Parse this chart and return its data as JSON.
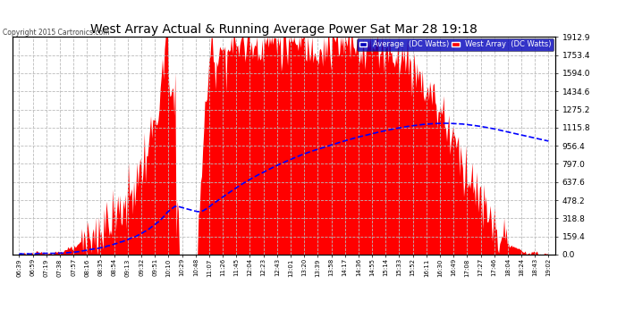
{
  "title": "West Array Actual & Running Average Power Sat Mar 28 19:18",
  "copyright": "Copyright 2015 Cartronics.com",
  "legend_avg": "Average  (DC Watts)",
  "legend_west": "West Array  (DC Watts)",
  "ymax": 1912.9,
  "ymin": 0.0,
  "yticks": [
    0.0,
    159.4,
    318.8,
    478.2,
    637.6,
    797.0,
    956.4,
    1115.8,
    1275.2,
    1434.6,
    1594.0,
    1753.4,
    1912.9
  ],
  "bg_color": "#ffffff",
  "plot_bg_color": "#ffffff",
  "grid_color": "#bbbbbb",
  "red_color": "#ff0000",
  "blue_color": "#0000ff",
  "title_color": "#000000",
  "x_labels": [
    "06:39",
    "06:59",
    "07:19",
    "07:38",
    "07:57",
    "08:16",
    "08:35",
    "08:54",
    "09:13",
    "09:32",
    "09:51",
    "10:10",
    "10:29",
    "10:48",
    "11:07",
    "11:26",
    "11:45",
    "12:04",
    "12:23",
    "12:43",
    "13:01",
    "13:20",
    "13:39",
    "13:58",
    "14:17",
    "14:36",
    "14:55",
    "15:14",
    "15:33",
    "15:52",
    "16:11",
    "16:30",
    "16:49",
    "17:08",
    "17:27",
    "17:46",
    "18:04",
    "18:24",
    "18:43",
    "19:02"
  ]
}
